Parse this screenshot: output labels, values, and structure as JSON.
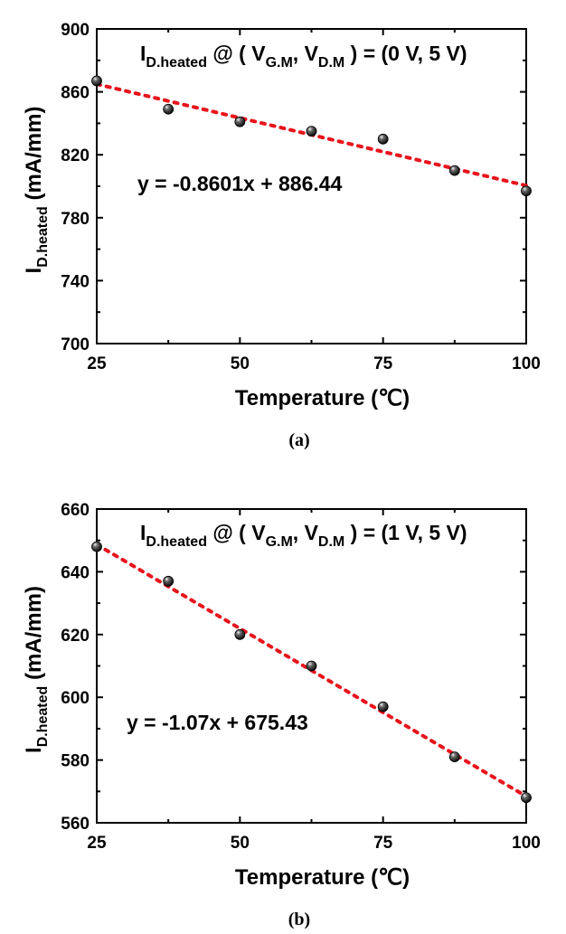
{
  "panels": [
    {
      "caption": "(a)",
      "chart_data": {
        "type": "scatter",
        "title": {
          "main": "I",
          "main_sub": "D.heated",
          "middle": " @ ( V",
          "sub1": "G.M",
          "comma": ", V",
          "sub2": "D.M",
          "tail": " ) = (0 V, 5 V)"
        },
        "xlabel": "Temperature (℃)",
        "ylabel": {
          "main": "I",
          "sub": "D.heated",
          "unit": " (mA/mm)"
        },
        "xlim": [
          25,
          100
        ],
        "ylim": [
          700,
          900
        ],
        "xticks": [
          25,
          50,
          75,
          100
        ],
        "yticks": [
          700,
          740,
          780,
          820,
          860,
          900
        ],
        "x": [
          25,
          37.5,
          50,
          62.5,
          75,
          87.5,
          100
        ],
        "y": [
          867,
          849,
          841,
          835,
          830,
          810,
          797
        ],
        "fit": {
          "slope": -0.8601,
          "intercept": 886.44,
          "label": "y = -0.8601x + 886.44",
          "color": "#e8141c"
        },
        "grid": false
      }
    },
    {
      "caption": "(b)",
      "chart_data": {
        "type": "scatter",
        "title": {
          "main": "I",
          "main_sub": "D.heated",
          "middle": " @ ( V",
          "sub1": "G.M",
          "comma": ", V",
          "sub2": "D.M",
          "tail": " ) = (1 V, 5 V)"
        },
        "xlabel": "Temperature (℃)",
        "ylabel": {
          "main": "I",
          "sub": "D.heated",
          "unit": " (mA/mm)"
        },
        "xlim": [
          25,
          100
        ],
        "ylim": [
          560,
          660
        ],
        "xticks": [
          25,
          50,
          75,
          100
        ],
        "yticks": [
          560,
          580,
          600,
          620,
          640,
          660
        ],
        "x": [
          25,
          37.5,
          50,
          62.5,
          75,
          87.5,
          100
        ],
        "y": [
          648,
          637,
          620,
          610,
          597,
          581,
          568
        ],
        "fit": {
          "slope": -1.07,
          "intercept": 675.43,
          "label": "y = -1.07x + 675.43",
          "color": "#e8141c"
        },
        "grid": false
      }
    }
  ]
}
